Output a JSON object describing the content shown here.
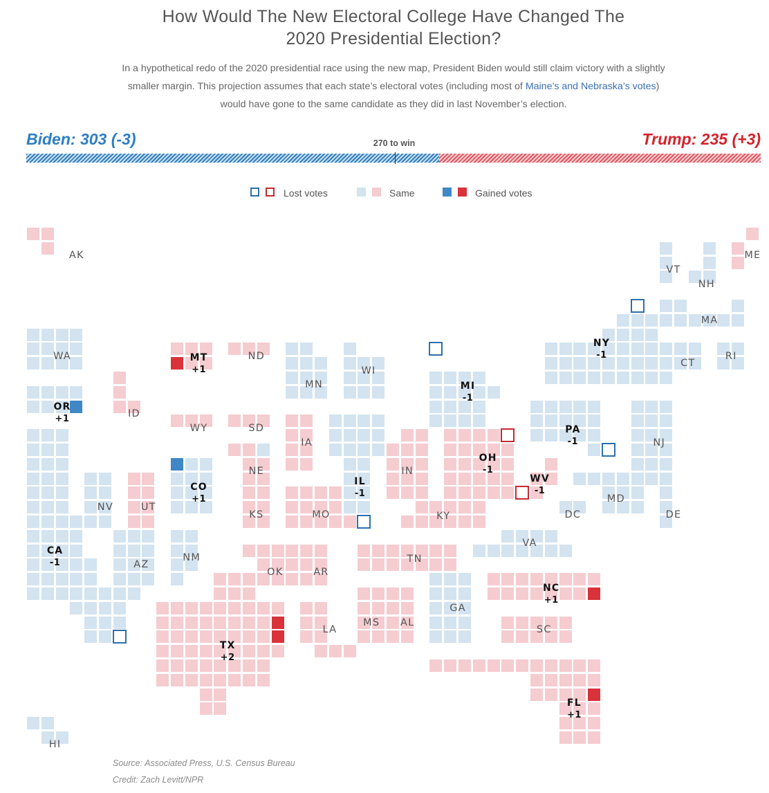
{
  "title_line1": "How Would The New Electoral College Have Changed The",
  "title_line2": "2020 Presidential Election?",
  "description": {
    "part1": "In a hypothetical redo of the 2020 presidential race using the new map, President Biden would still claim victory with a slightly smaller margin. This projection assumes that each state’s electoral votes (including most of ",
    "link": "Maine’s and Nebraska’s votes",
    "part2": ") would have gone to the same candidate as they did in last November’s election."
  },
  "tally": {
    "biden": "Biden: 303 (-3)",
    "trump": "Trump: 235 (+3)",
    "win_label": "270 to win"
  },
  "legend": {
    "lost": "Lost votes",
    "same": "Same",
    "gained": "Gained votes"
  },
  "colors": {
    "dem_same": "#d3e3f0",
    "rep_same": "#f5ccd0",
    "dem_gain": "#3f87c6",
    "rep_gain": "#d9323a",
    "dem_lost": "#2c6fad",
    "rep_lost": "#c62a31"
  },
  "states": [
    {
      "abbr": "AK",
      "winner": "R",
      "change": ""
    },
    {
      "abbr": "HI",
      "winner": "D",
      "change": ""
    },
    {
      "abbr": "WA",
      "winner": "D",
      "change": ""
    },
    {
      "abbr": "OR",
      "winner": "D",
      "change": "+1"
    },
    {
      "abbr": "CA",
      "winner": "D",
      "change": "-1"
    },
    {
      "abbr": "ID",
      "winner": "R",
      "change": ""
    },
    {
      "abbr": "NV",
      "winner": "D",
      "change": ""
    },
    {
      "abbr": "UT",
      "winner": "R",
      "change": ""
    },
    {
      "abbr": "AZ",
      "winner": "D",
      "change": ""
    },
    {
      "abbr": "MT",
      "winner": "R",
      "change": "+1"
    },
    {
      "abbr": "WY",
      "winner": "R",
      "change": ""
    },
    {
      "abbr": "CO",
      "winner": "D",
      "change": "+1"
    },
    {
      "abbr": "NM",
      "winner": "D",
      "change": ""
    },
    {
      "abbr": "ND",
      "winner": "R",
      "change": ""
    },
    {
      "abbr": "SD",
      "winner": "R",
      "change": ""
    },
    {
      "abbr": "NE",
      "winner": "R",
      "change": ""
    },
    {
      "abbr": "KS",
      "winner": "R",
      "change": ""
    },
    {
      "abbr": "OK",
      "winner": "R",
      "change": ""
    },
    {
      "abbr": "TX",
      "winner": "R",
      "change": "+2"
    },
    {
      "abbr": "MN",
      "winner": "D",
      "change": ""
    },
    {
      "abbr": "IA",
      "winner": "R",
      "change": ""
    },
    {
      "abbr": "MO",
      "winner": "R",
      "change": ""
    },
    {
      "abbr": "AR",
      "winner": "R",
      "change": ""
    },
    {
      "abbr": "LA",
      "winner": "R",
      "change": ""
    },
    {
      "abbr": "WI",
      "winner": "D",
      "change": ""
    },
    {
      "abbr": "IL",
      "winner": "D",
      "change": "-1"
    },
    {
      "abbr": "MS",
      "winner": "R",
      "change": ""
    },
    {
      "abbr": "AL",
      "winner": "R",
      "change": ""
    },
    {
      "abbr": "IN",
      "winner": "R",
      "change": ""
    },
    {
      "abbr": "KY",
      "winner": "R",
      "change": ""
    },
    {
      "abbr": "TN",
      "winner": "R",
      "change": ""
    },
    {
      "abbr": "MI",
      "winner": "D",
      "change": "-1"
    },
    {
      "abbr": "OH",
      "winner": "R",
      "change": "-1"
    },
    {
      "abbr": "WV",
      "winner": "R",
      "change": "-1"
    },
    {
      "abbr": "GA",
      "winner": "D",
      "change": ""
    },
    {
      "abbr": "FL",
      "winner": "R",
      "change": "+1"
    },
    {
      "abbr": "SC",
      "winner": "R",
      "change": ""
    },
    {
      "abbr": "NC",
      "winner": "R",
      "change": "+1"
    },
    {
      "abbr": "VA",
      "winner": "D",
      "change": ""
    },
    {
      "abbr": "PA",
      "winner": "D",
      "change": "-1"
    },
    {
      "abbr": "MD",
      "winner": "D",
      "change": ""
    },
    {
      "abbr": "DC",
      "winner": "D",
      "change": ""
    },
    {
      "abbr": "DE",
      "winner": "D",
      "change": ""
    },
    {
      "abbr": "NJ",
      "winner": "D",
      "change": ""
    },
    {
      "abbr": "NY",
      "winner": "D",
      "change": "-1"
    },
    {
      "abbr": "CT",
      "winner": "D",
      "change": ""
    },
    {
      "abbr": "RI",
      "winner": "D",
      "change": ""
    },
    {
      "abbr": "MA",
      "winner": "D",
      "change": ""
    },
    {
      "abbr": "VT",
      "winner": "D",
      "change": ""
    },
    {
      "abbr": "NH",
      "winner": "D",
      "change": ""
    },
    {
      "abbr": "ME",
      "winner": "R",
      "change": ""
    }
  ],
  "source": "Source: Associated Press, U.S. Census Bureau",
  "credit": "Credit: Zach Levitt/NPR"
}
